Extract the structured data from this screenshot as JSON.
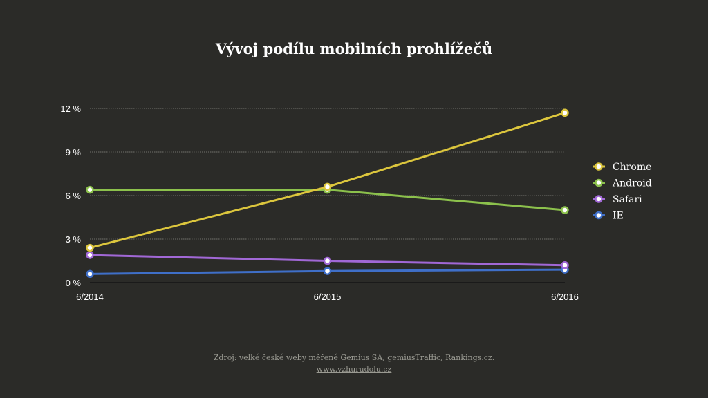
{
  "chart_data": {
    "type": "line",
    "title": "Vývoj podílu mobilních prohlížečů",
    "x": [
      "6/2014",
      "6/2015",
      "6/2016"
    ],
    "y_ticks": [
      "0 %",
      "3 %",
      "6 %",
      "9 %",
      "12 %"
    ],
    "ylim": [
      0,
      12
    ],
    "grid": true,
    "legend_position": "right",
    "series": [
      {
        "name": "Chrome",
        "values": [
          2.4,
          6.6,
          11.7
        ],
        "color": "#dcc63d"
      },
      {
        "name": "Android",
        "values": [
          6.4,
          6.4,
          5.0
        ],
        "color": "#8cc14c"
      },
      {
        "name": "Safari",
        "values": [
          1.9,
          1.5,
          1.2
        ],
        "color": "#a168d6"
      },
      {
        "name": "IE",
        "values": [
          0.6,
          0.8,
          0.9
        ],
        "color": "#3f6fc8"
      }
    ]
  },
  "footer": {
    "source_prefix": "Zdroj: velké české weby měřené Gemius SA, gemiusTraffic,",
    "source_link": "Rankings.cz",
    "source_suffix": ".",
    "site": "www.vzhurudolu.cz"
  }
}
